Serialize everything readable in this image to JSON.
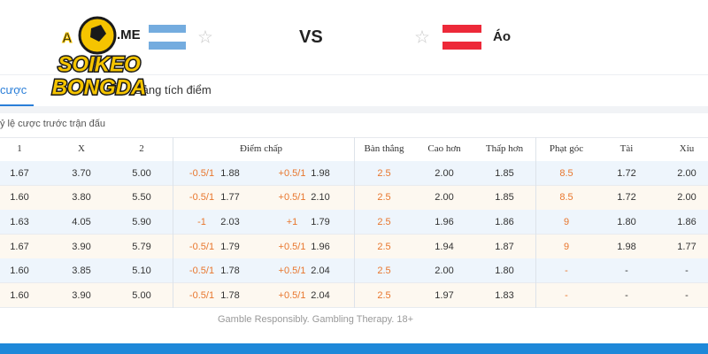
{
  "header": {
    "logo_top": "A",
    "logo_domain": ".ME",
    "logo_line1": "SOIKEO",
    "logo_line2": "BONGDA",
    "vs": "VS",
    "away_team": "Áo"
  },
  "tabs": [
    "cược",
    "Bảng tích điểm"
  ],
  "section_title": "ỷ lệ cược trước trận đấu",
  "table": {
    "header": [
      "1",
      "X",
      "2",
      "Điểm chấp",
      "Bàn thắng",
      "Cao hơn",
      "Thấp hơn",
      "Phạt góc",
      "Tài",
      "Xỉu"
    ],
    "rows": [
      [
        "1.67",
        "3.70",
        "5.00",
        "-0.5/1",
        "1.88",
        "+0.5/1",
        "1.98",
        "2.5",
        "2.00",
        "1.85",
        "8.5",
        "1.72",
        "2.00"
      ],
      [
        "1.60",
        "3.80",
        "5.50",
        "-0.5/1",
        "1.77",
        "+0.5/1",
        "2.10",
        "2.5",
        "2.00",
        "1.85",
        "8.5",
        "1.72",
        "2.00"
      ],
      [
        "1.63",
        "4.05",
        "5.90",
        "-1",
        "2.03",
        "+1",
        "1.79",
        "2.5",
        "1.96",
        "1.86",
        "9",
        "1.80",
        "1.86"
      ],
      [
        "1.67",
        "3.90",
        "5.79",
        "-0.5/1",
        "1.79",
        "+0.5/1",
        "1.96",
        "2.5",
        "1.94",
        "1.87",
        "9",
        "1.98",
        "1.77"
      ],
      [
        "1.60",
        "3.85",
        "5.10",
        "-0.5/1",
        "1.78",
        "+0.5/1",
        "2.04",
        "2.5",
        "2.00",
        "1.80",
        "-",
        "-",
        "-"
      ],
      [
        "1.60",
        "3.90",
        "5.00",
        "-0.5/1",
        "1.78",
        "+0.5/1",
        "2.04",
        "2.5",
        "1.97",
        "1.83",
        "-",
        "-",
        "-"
      ]
    ]
  },
  "footer": "Gamble Responsibly. Gambling Therapy. 18+"
}
